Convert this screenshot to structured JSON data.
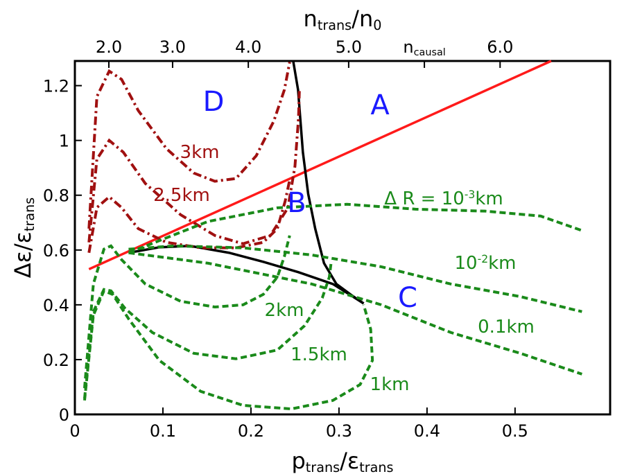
{
  "chart_data": {
    "type": "line",
    "xlabel": [
      {
        "text": "p"
      },
      {
        "text": "trans",
        "sub": true
      },
      {
        "text": "/ε"
      },
      {
        "text": "trans",
        "sub": true
      }
    ],
    "ylabel": [
      {
        "text": "Δε/ε"
      },
      {
        "text": "trans",
        "sub": true
      }
    ],
    "x2label": [
      {
        "text": "n"
      },
      {
        "text": "trans",
        "sub": true
      },
      {
        "text": "/n"
      },
      {
        "text": "0",
        "sub": true
      }
    ],
    "xlim": [
      0,
      0.608
    ],
    "ylim": [
      0,
      1.29
    ],
    "xticks": [
      0,
      0.1,
      0.2,
      0.3,
      0.4,
      0.5
    ],
    "yticks": [
      0,
      0.2,
      0.4,
      0.6,
      0.8,
      1,
      1.2
    ],
    "x2ticks": [
      {
        "value": 0.0386,
        "label": "2.0"
      },
      {
        "value": 0.111,
        "label": "3.0"
      },
      {
        "value": 0.197,
        "label": "4.0"
      },
      {
        "value": 0.311,
        "label": "5.0"
      },
      {
        "value": 0.397,
        "label": [
          {
            "text": "n"
          },
          {
            "text": "causal",
            "sub": true
          }
        ]
      },
      {
        "value": 0.483,
        "label": "6.0"
      }
    ],
    "series": [
      {
        "color": "#ff1a1a",
        "style": "solid",
        "x": [
          0.016,
          0.541
        ],
        "y": [
          0.53,
          1.29
        ]
      },
      {
        "color": "#000000",
        "style": "solid",
        "x": [
          0.248,
          0.2535,
          0.259,
          0.265,
          0.273,
          0.283,
          0.297,
          0.313,
          0.328
        ],
        "y": [
          1.29,
          1.185,
          0.957,
          0.805,
          0.678,
          0.552,
          0.476,
          0.438,
          0.405
        ]
      },
      {
        "color": "#000000",
        "style": "solid",
        "x": [
          0.061,
          0.096,
          0.131,
          0.175,
          0.214,
          0.254,
          0.293,
          0.328
        ],
        "y": [
          0.59,
          0.61,
          0.615,
          0.59,
          0.557,
          0.519,
          0.476,
          0.405
        ]
      },
      {
        "color": "#a01010",
        "style": "dashdot",
        "x": [
          0.016,
          0.025,
          0.039,
          0.053,
          0.072,
          0.104,
          0.135,
          0.159,
          0.183,
          0.206,
          0.226,
          0.238,
          0.244
        ],
        "y": [
          0.678,
          1.16,
          1.253,
          1.223,
          1.109,
          0.97,
          0.881,
          0.851,
          0.861,
          0.944,
          1.071,
          1.185,
          1.286
        ]
      },
      {
        "color": "#a01010",
        "style": "dashdot",
        "x": [
          0.016,
          0.025,
          0.039,
          0.055,
          0.08,
          0.12,
          0.159,
          0.191,
          0.222,
          0.242,
          0.25,
          0.254,
          0.255
        ],
        "y": [
          0.628,
          0.932,
          1.0,
          0.957,
          0.843,
          0.729,
          0.653,
          0.623,
          0.653,
          0.754,
          0.906,
          1.08,
          1.18
        ]
      },
      {
        "color": "#a01010",
        "style": "dashdot",
        "x": [
          0.016,
          0.025,
          0.039,
          0.053,
          0.072,
          0.104,
          0.143,
          0.183,
          0.214,
          0.23,
          0.239,
          0.244
        ],
        "y": [
          0.59,
          0.755,
          0.794,
          0.755,
          0.678,
          0.628,
          0.608,
          0.608,
          0.628,
          0.678,
          0.78,
          0.856
        ]
      },
      {
        "color": "#1a8a1a",
        "style": "dashed",
        "x": [
          0.011,
          0.021,
          0.033,
          0.041,
          0.053,
          0.08,
          0.12,
          0.159,
          0.191,
          0.214,
          0.23,
          0.238,
          0.244
        ],
        "y": [
          0.096,
          0.476,
          0.603,
          0.615,
          0.565,
          0.476,
          0.413,
          0.392,
          0.4,
          0.438,
          0.501,
          0.577,
          0.653
        ]
      },
      {
        "color": "#1a8a1a",
        "style": "dashed",
        "x": [
          0.011,
          0.021,
          0.033,
          0.041,
          0.057,
          0.088,
          0.135,
          0.183,
          0.23,
          0.261,
          0.281,
          0.289,
          0.291
        ],
        "y": [
          0.058,
          0.375,
          0.456,
          0.451,
          0.387,
          0.299,
          0.223,
          0.203,
          0.235,
          0.324,
          0.425,
          0.501,
          0.552
        ]
      },
      {
        "color": "#1a8a1a",
        "style": "dashed",
        "x": [
          0.011,
          0.021,
          0.033,
          0.043,
          0.061,
          0.096,
          0.143,
          0.191,
          0.246,
          0.293,
          0.324,
          0.338,
          0.336,
          0.328
        ],
        "y": [
          0.051,
          0.362,
          0.451,
          0.438,
          0.349,
          0.197,
          0.084,
          0.033,
          0.02,
          0.051,
          0.109,
          0.197,
          0.311,
          0.4
        ]
      },
      {
        "color": "#1a8a1a",
        "style": "dashed",
        "x": [
          0.061,
          0.151,
          0.23,
          0.309,
          0.387,
          0.466,
          0.529,
          0.576
        ],
        "y": [
          0.59,
          0.704,
          0.754,
          0.767,
          0.749,
          0.742,
          0.724,
          0.671
        ]
      },
      {
        "color": "#1a8a1a",
        "style": "dashed",
        "x": [
          0.061,
          0.112,
          0.191,
          0.269,
          0.348,
          0.427,
          0.506,
          0.576
        ],
        "y": [
          0.603,
          0.615,
          0.608,
          0.582,
          0.539,
          0.476,
          0.43,
          0.375
        ]
      },
      {
        "color": "#1a8a1a",
        "style": "dashed",
        "x": [
          0.061,
          0.151,
          0.269,
          0.348,
          0.427,
          0.506,
          0.576
        ],
        "y": [
          0.59,
          0.552,
          0.476,
          0.4,
          0.299,
          0.223,
          0.147
        ]
      }
    ],
    "annotations": [
      {
        "color": "#1a1aff",
        "parts": [
          {
            "text": "D"
          }
        ]
      },
      {
        "color": "#1a1aff",
        "parts": [
          {
            "text": "A"
          }
        ]
      },
      {
        "color": "#1a1aff",
        "parts": [
          {
            "text": "B"
          }
        ]
      },
      {
        "color": "#1a1aff",
        "parts": [
          {
            "text": "C"
          }
        ]
      },
      {
        "color": "#a01010",
        "parts": [
          {
            "text": "3km"
          }
        ]
      },
      {
        "color": "#a01010",
        "parts": [
          {
            "text": "2.5km"
          }
        ]
      },
      {
        "color": "#1a8a1a",
        "parts": [
          {
            "text": "2km"
          }
        ]
      },
      {
        "color": "#1a8a1a",
        "parts": [
          {
            "text": "1.5km"
          }
        ]
      },
      {
        "color": "#1a8a1a",
        "parts": [
          {
            "text": "1km"
          }
        ]
      },
      {
        "color": "#1a8a1a",
        "parts": [
          {
            "text": "0.1km"
          }
        ]
      },
      {
        "color": "#1a8a1a",
        "parts": [
          {
            "text": "Δ R = 10"
          },
          {
            "text": "-3",
            "sup": true
          },
          {
            "text": "km"
          }
        ]
      },
      {
        "color": "#1a8a1a",
        "parts": [
          {
            "text": "10"
          },
          {
            "text": "-2",
            "sup": true
          },
          {
            "text": "km"
          }
        ]
      }
    ]
  }
}
